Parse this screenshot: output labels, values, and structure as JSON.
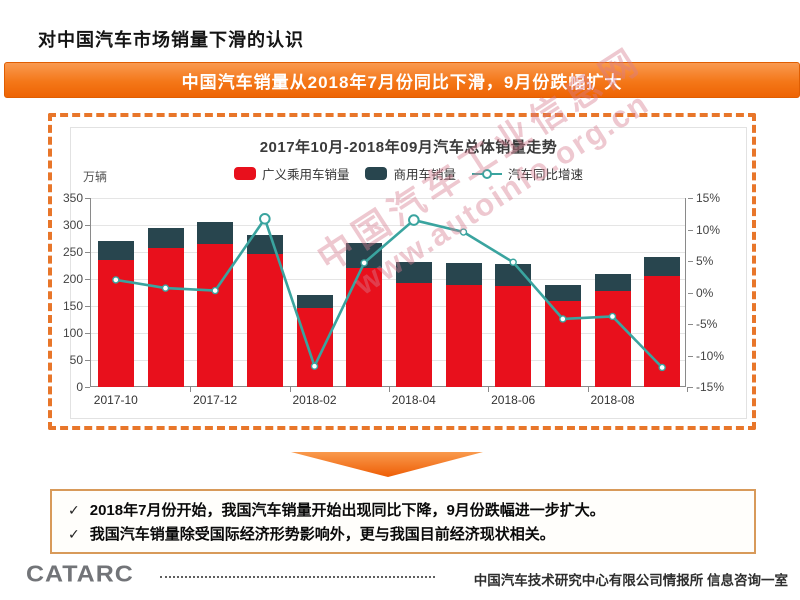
{
  "page": {
    "title": "对中国汽车市场销量下滑的认识",
    "accent": "#e8762a"
  },
  "banner": {
    "text": "中国汽车销量从2018年7月份同比下滑，9月份跌幅扩大",
    "bg": "#f47718"
  },
  "chart_data": {
    "type": "bar",
    "variant": "stacked-bars-with-yoy-line",
    "title": "2017年10月-2018年09月汽车总体销量走势",
    "unit_label": "万辆",
    "categories": [
      "2017-10",
      "2017-11",
      "2017-12",
      "2018-01",
      "2018-02",
      "2018-03",
      "2018-04",
      "2018-05",
      "2018-06",
      "2018-07",
      "2018-08",
      "2018-09"
    ],
    "x_tick_labels": [
      "2017-10",
      "2017-12",
      "2018-02",
      "2018-04",
      "2018-06",
      "2018-08"
    ],
    "series": [
      {
        "key": "passenger",
        "name": "广义乘用车销量",
        "type": "bar",
        "color": "#e8101c",
        "values": [
          235,
          258,
          265,
          247,
          147,
          220,
          192,
          189,
          187,
          160,
          178,
          206
        ]
      },
      {
        "key": "commercial",
        "name": "商用车销量",
        "type": "bar",
        "color": "#28454e",
        "values": [
          35,
          37,
          40,
          34,
          24,
          46,
          40,
          40,
          40,
          28,
          32,
          34
        ]
      },
      {
        "key": "yoy-growth",
        "name": "汽车同比增速",
        "type": "line",
        "axis": "right",
        "unit": "%",
        "color": "#3aa49f",
        "values": [
          2.0,
          0.7,
          0.3,
          11.7,
          -11.7,
          4.7,
          11.5,
          9.6,
          4.8,
          -4.2,
          -3.8,
          -11.9
        ]
      }
    ],
    "left_axis": {
      "min": 0,
      "max": 350,
      "step": 50
    },
    "right_axis": {
      "min": -15,
      "max": 15,
      "step": 5,
      "suffix": "%"
    },
    "grid": true,
    "legend_position": "top"
  },
  "watermark": {
    "line1": "中国汽车工业信息网",
    "line2": "www.autoinfo.org.cn"
  },
  "insights": {
    "bullet": "✓",
    "items": [
      "2018年7月份开始，我国汽车销量开始出现同比下降，9月份跌幅进一步扩大。",
      "我国汽车销量除受国际经济形势影响外，更与我国目前经济现状相关。"
    ]
  },
  "footer": {
    "logo": "CATARC",
    "org": "中国汽车技术研究中心有限公司情报所  信息咨询一室"
  }
}
